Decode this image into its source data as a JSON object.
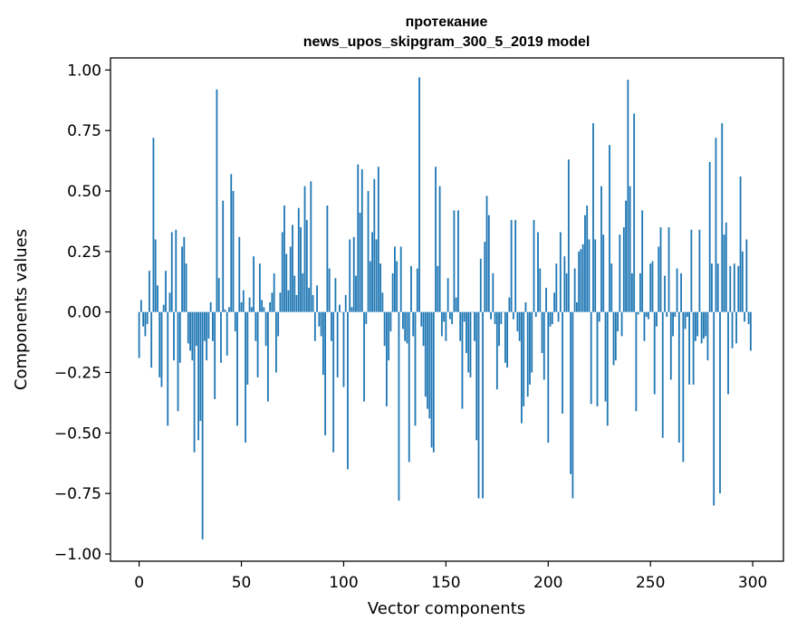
{
  "chart_data": {
    "type": "bar",
    "title_lines": [
      "протекание",
      "news_upos_skipgram_300_5_2019 model"
    ],
    "xlabel": "Vector components",
    "ylabel": "Components values",
    "xlim": [
      -14,
      315
    ],
    "ylim": [
      -1.03,
      1.05
    ],
    "xticks": [
      0,
      50,
      100,
      150,
      200,
      250,
      300
    ],
    "xtick_labels": [
      "0",
      "50",
      "100",
      "150",
      "200",
      "250",
      "300"
    ],
    "yticks": [
      1.0,
      0.75,
      0.5,
      0.25,
      0.0,
      -0.25,
      -0.5,
      -0.75,
      -1.0
    ],
    "ytick_labels": [
      "1.00",
      "0.75",
      "0.50",
      "0.25",
      "0.00",
      "−0.25",
      "−0.50",
      "−0.75",
      "−1.00"
    ],
    "grid": false,
    "bar_color": "#1f77b4",
    "x": [
      0,
      1,
      2,
      3,
      4,
      5,
      6,
      7,
      8,
      9,
      10,
      11,
      12,
      13,
      14,
      15,
      16,
      17,
      18,
      19,
      20,
      21,
      22,
      23,
      24,
      25,
      26,
      27,
      28,
      29,
      30,
      31,
      32,
      33,
      34,
      35,
      36,
      37,
      38,
      39,
      40,
      41,
      42,
      43,
      44,
      45,
      46,
      47,
      48,
      49,
      50,
      51,
      52,
      53,
      54,
      55,
      56,
      57,
      58,
      59,
      60,
      61,
      62,
      63,
      64,
      65,
      66,
      67,
      68,
      69,
      70,
      71,
      72,
      73,
      74,
      75,
      76,
      77,
      78,
      79,
      80,
      81,
      82,
      83,
      84,
      85,
      86,
      87,
      88,
      89,
      90,
      91,
      92,
      93,
      94,
      95,
      96,
      97,
      98,
      99,
      100,
      101,
      102,
      103,
      104,
      105,
      106,
      107,
      108,
      109,
      110,
      111,
      112,
      113,
      114,
      115,
      116,
      117,
      118,
      119,
      120,
      121,
      122,
      123,
      124,
      125,
      126,
      127,
      128,
      129,
      130,
      131,
      132,
      133,
      134,
      135,
      136,
      137,
      138,
      139,
      140,
      141,
      142,
      143,
      144,
      145,
      146,
      147,
      148,
      149,
      150,
      151,
      152,
      153,
      154,
      155,
      156,
      157,
      158,
      159,
      160,
      161,
      162,
      163,
      164,
      165,
      166,
      167,
      168,
      169,
      170,
      171,
      172,
      173,
      174,
      175,
      176,
      177,
      178,
      179,
      180,
      181,
      182,
      183,
      184,
      185,
      186,
      187,
      188,
      189,
      190,
      191,
      192,
      193,
      194,
      195,
      196,
      197,
      198,
      199,
      200,
      201,
      202,
      203,
      204,
      205,
      206,
      207,
      208,
      209,
      210,
      211,
      212,
      213,
      214,
      215,
      216,
      217,
      218,
      219,
      220,
      221,
      222,
      223,
      224,
      225,
      226,
      227,
      228,
      229,
      230,
      231,
      232,
      233,
      234,
      235,
      236,
      237,
      238,
      239,
      240,
      241,
      242,
      243,
      244,
      245,
      246,
      247,
      248,
      249,
      250,
      251,
      252,
      253,
      254,
      255,
      256,
      257,
      258,
      259,
      260,
      261,
      262,
      263,
      264,
      265,
      266,
      267,
      268,
      269,
      270,
      271,
      272,
      273,
      274,
      275,
      276,
      277,
      278,
      279,
      280,
      281,
      282,
      283,
      284,
      285,
      286,
      287,
      288,
      289,
      290,
      291,
      292,
      293,
      294,
      295,
      296,
      297,
      298,
      299
    ],
    "values": [
      -0.19,
      0.05,
      -0.06,
      -0.1,
      -0.05,
      0.17,
      -0.23,
      0.72,
      0.3,
      0.11,
      -0.27,
      -0.31,
      0.03,
      0.17,
      -0.47,
      0.08,
      0.33,
      -0.2,
      0.34,
      -0.41,
      -0.21,
      0.27,
      0.31,
      0.2,
      -0.13,
      -0.16,
      -0.2,
      -0.58,
      -0.14,
      -0.53,
      -0.45,
      -0.94,
      -0.12,
      -0.2,
      -0.11,
      0.04,
      -0.12,
      -0.36,
      0.92,
      0.14,
      -0.21,
      0.46,
      0.01,
      -0.18,
      0.02,
      0.57,
      0.5,
      -0.08,
      -0.47,
      0.31,
      0.04,
      0.09,
      -0.54,
      -0.3,
      0.06,
      0.02,
      0.23,
      -0.12,
      -0.27,
      0.2,
      0.05,
      0.02,
      -0.14,
      -0.37,
      0.04,
      0.08,
      0.16,
      -0.25,
      -0.1,
      0.08,
      0.33,
      0.44,
      0.24,
      0.09,
      0.27,
      0.36,
      0.15,
      0.07,
      0.43,
      0.35,
      0.16,
      0.52,
      0.38,
      0.1,
      0.54,
      0.07,
      -0.12,
      0.11,
      -0.06,
      -0.1,
      -0.26,
      -0.51,
      0.44,
      0.18,
      -0.12,
      -0.58,
      0.14,
      -0.27,
      0.03,
      0.0,
      -0.31,
      0.07,
      -0.65,
      0.3,
      0.02,
      0.31,
      0.15,
      0.61,
      0.41,
      0.59,
      -0.37,
      -0.05,
      0.5,
      0.21,
      0.33,
      0.55,
      0.3,
      0.6,
      0.2,
      0.08,
      -0.14,
      -0.39,
      -0.2,
      -0.08,
      0.16,
      0.27,
      0.21,
      -0.78,
      0.27,
      -0.07,
      -0.12,
      -0.13,
      -0.62,
      0.19,
      -0.1,
      -0.47,
      0.18,
      0.97,
      -0.06,
      -0.14,
      -0.35,
      -0.4,
      -0.44,
      -0.56,
      -0.58,
      0.6,
      0.19,
      0.52,
      -0.1,
      -0.04,
      -0.12,
      0.14,
      -0.03,
      -0.05,
      0.42,
      0.06,
      0.42,
      -0.12,
      -0.4,
      -0.04,
      -0.17,
      -0.25,
      -0.27,
      0.0,
      -0.12,
      -0.53,
      -0.77,
      0.22,
      -0.77,
      0.29,
      0.48,
      0.4,
      -0.03,
      0.16,
      -0.05,
      -0.32,
      -0.14,
      -0.05,
      0.0,
      -0.21,
      -0.23,
      0.06,
      0.38,
      -0.03,
      0.38,
      -0.08,
      -0.12,
      -0.46,
      -0.39,
      0.04,
      -0.35,
      -0.3,
      -0.25,
      0.38,
      -0.02,
      0.33,
      0.18,
      -0.17,
      -0.28,
      0.1,
      -0.54,
      -0.06,
      -0.05,
      0.08,
      0.2,
      -0.04,
      0.33,
      -0.42,
      0.23,
      0.16,
      0.63,
      -0.67,
      -0.77,
      0.18,
      0.04,
      0.25,
      0.26,
      0.28,
      0.4,
      0.44,
      0.3,
      -0.38,
      0.78,
      0.3,
      -0.39,
      -0.04,
      0.52,
      0.32,
      -0.37,
      -0.47,
      0.69,
      0.2,
      -0.22,
      -0.2,
      -0.08,
      0.32,
      -0.1,
      0.35,
      0.46,
      0.96,
      0.52,
      0.16,
      0.82,
      -0.41,
      -0.01,
      0.16,
      0.42,
      -0.12,
      -0.02,
      -0.03,
      0.2,
      0.21,
      -0.34,
      -0.06,
      0.27,
      0.35,
      -0.52,
      0.15,
      -0.02,
      0.35,
      -0.28,
      -0.1,
      -0.02,
      0.18,
      -0.54,
      0.16,
      -0.62,
      -0.07,
      -0.02,
      -0.3,
      0.34,
      -0.3,
      -0.12,
      -0.1,
      0.34,
      -0.13,
      -0.11,
      -0.1,
      -0.2,
      0.62,
      0.2,
      -0.8,
      0.72,
      0.2,
      -0.75,
      0.78,
      0.32,
      0.37,
      -0.34,
      0.19,
      -0.15,
      0.2,
      -0.13,
      0.19,
      0.56,
      0.25,
      -0.04,
      0.3,
      -0.05,
      -0.16
    ]
  }
}
